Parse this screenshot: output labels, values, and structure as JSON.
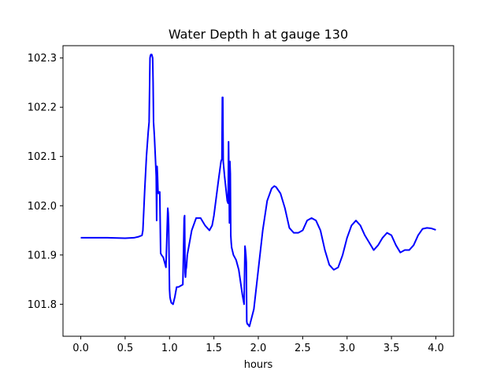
{
  "chart_data": {
    "type": "line",
    "title": "Water Depth h at gauge 130",
    "xlabel": "hours",
    "ylabel": "",
    "xlim": [
      -0.2,
      4.2
    ],
    "ylim": [
      101.735,
      102.325
    ],
    "xticks": [
      0.0,
      0.5,
      1.0,
      1.5,
      2.0,
      2.5,
      3.0,
      3.5,
      4.0
    ],
    "xtick_labels": [
      "0.0",
      "0.5",
      "1.0",
      "1.5",
      "2.0",
      "2.5",
      "3.0",
      "3.5",
      "4.0"
    ],
    "yticks": [
      101.8,
      101.9,
      102.0,
      102.1,
      102.2,
      102.3
    ],
    "ytick_labels": [
      "101.8",
      "101.9",
      "102.0",
      "102.1",
      "102.2",
      "102.3"
    ],
    "grid": false,
    "legend": "none",
    "series": [
      {
        "color": "#0000ff",
        "x": [
          0.0,
          0.3,
          0.5,
          0.6,
          0.65,
          0.69,
          0.7,
          0.72,
          0.74,
          0.76,
          0.77,
          0.78,
          0.785,
          0.79,
          0.8,
          0.81,
          0.815,
          0.82,
          0.83,
          0.84,
          0.85,
          0.855,
          0.86,
          0.865,
          0.87,
          0.875,
          0.88,
          0.89,
          0.9,
          0.905,
          0.91,
          0.93,
          0.96,
          0.98,
          0.985,
          0.99,
          1.0,
          1.005,
          1.01,
          1.02,
          1.04,
          1.06,
          1.08,
          1.1,
          1.15,
          1.165,
          1.17,
          1.175,
          1.18,
          1.185,
          1.19,
          1.2,
          1.25,
          1.3,
          1.35,
          1.4,
          1.45,
          1.48,
          1.5,
          1.55,
          1.58,
          1.59,
          1.595,
          1.6,
          1.605,
          1.61,
          1.62,
          1.65,
          1.66,
          1.665,
          1.67,
          1.675,
          1.68,
          1.685,
          1.69,
          1.695,
          1.7,
          1.72,
          1.75,
          1.78,
          1.82,
          1.84,
          1.85,
          1.855,
          1.86,
          1.865,
          1.87,
          1.875,
          1.88,
          1.9,
          1.95,
          2.0,
          2.05,
          2.1,
          2.15,
          2.18,
          2.2,
          2.25,
          2.3,
          2.35,
          2.4,
          2.45,
          2.5,
          2.55,
          2.6,
          2.65,
          2.7,
          2.75,
          2.8,
          2.85,
          2.9,
          2.95,
          3.0,
          3.05,
          3.1,
          3.15,
          3.2,
          3.25,
          3.3,
          3.35,
          3.4,
          3.45,
          3.5,
          3.55,
          3.6,
          3.65,
          3.7,
          3.75,
          3.8,
          3.85,
          3.9,
          3.95,
          4.0
        ],
        "y": [
          101.935,
          101.935,
          101.934,
          101.935,
          101.937,
          101.94,
          101.95,
          102.03,
          102.1,
          102.15,
          102.17,
          102.3,
          102.305,
          102.307,
          102.307,
          102.3,
          102.25,
          102.17,
          102.14,
          102.1,
          102.06,
          101.97,
          102.08,
          102.06,
          102.03,
          102.025,
          102.028,
          102.028,
          101.903,
          101.902,
          101.9,
          101.895,
          101.875,
          101.995,
          101.985,
          101.96,
          101.83,
          101.815,
          101.81,
          101.803,
          101.8,
          101.815,
          101.835,
          101.835,
          101.84,
          101.975,
          101.98,
          101.865,
          101.855,
          101.87,
          101.875,
          101.9,
          101.95,
          101.975,
          101.975,
          101.96,
          101.95,
          101.96,
          101.98,
          102.05,
          102.09,
          102.095,
          102.22,
          102.22,
          102.09,
          102.08,
          102.06,
          102.01,
          102.005,
          102.13,
          102.06,
          101.965,
          102.09,
          102.065,
          101.94,
          101.925,
          101.915,
          101.9,
          101.89,
          101.87,
          101.82,
          101.8,
          101.918,
          101.91,
          101.9,
          101.885,
          101.765,
          101.76,
          101.76,
          101.755,
          101.79,
          101.87,
          101.95,
          102.01,
          102.035,
          102.04,
          102.038,
          102.025,
          101.995,
          101.955,
          101.945,
          101.945,
          101.95,
          101.97,
          101.975,
          101.97,
          101.95,
          101.91,
          101.88,
          101.87,
          101.875,
          101.9,
          101.935,
          101.96,
          101.97,
          101.96,
          101.94,
          101.925,
          101.91,
          101.92,
          101.935,
          101.945,
          101.94,
          101.92,
          101.905,
          101.91,
          101.91,
          101.92,
          101.94,
          101.953,
          101.955,
          101.954,
          101.951
        ]
      }
    ]
  }
}
